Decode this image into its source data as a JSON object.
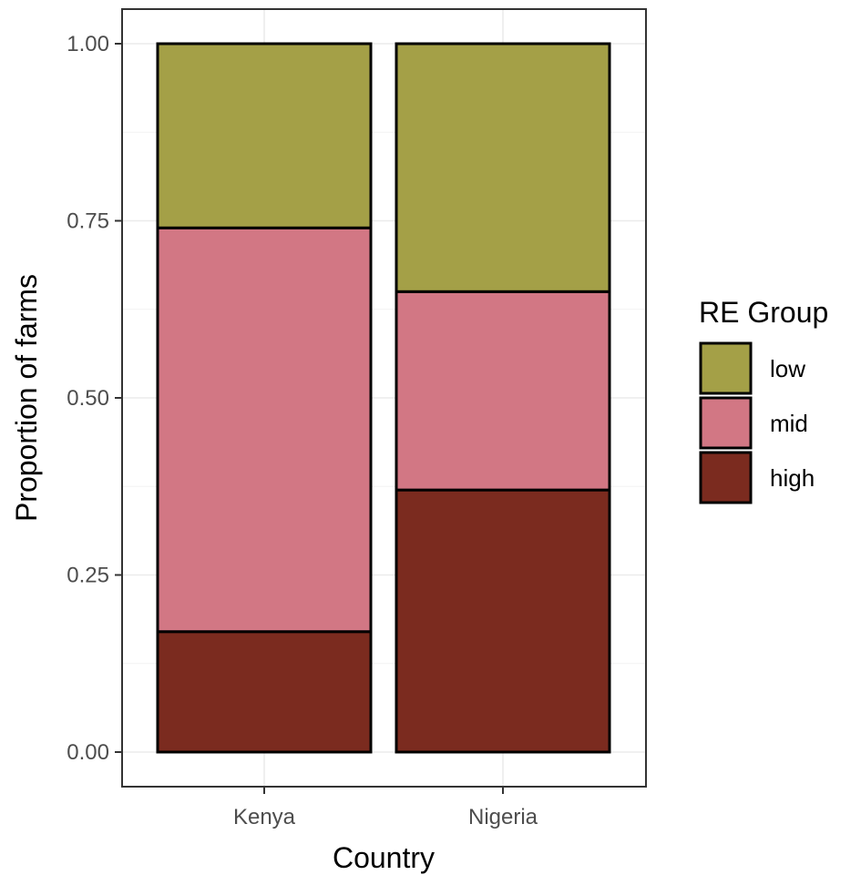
{
  "chart_data": {
    "type": "bar",
    "stacked": true,
    "categories": [
      "Kenya",
      "Nigeria"
    ],
    "series": [
      {
        "name": "high",
        "values": [
          0.17,
          0.37
        ],
        "color": "#7b2b1f"
      },
      {
        "name": "mid",
        "values": [
          0.57,
          0.28
        ],
        "color": "#d27784"
      },
      {
        "name": "low",
        "values": [
          0.26,
          0.35
        ],
        "color": "#a4a047"
      }
    ],
    "xlabel": "Country",
    "ylabel": "Proportion of farms",
    "ylim": [
      0,
      1
    ],
    "yticks": [
      "0.00",
      "0.25",
      "0.50",
      "0.75",
      "1.00"
    ],
    "ytick_values": [
      0,
      0.25,
      0.5,
      0.75,
      1
    ],
    "grid": true,
    "legend": {
      "title": "RE Group",
      "entries": [
        "low",
        "mid",
        "high"
      ],
      "position": "right"
    }
  }
}
